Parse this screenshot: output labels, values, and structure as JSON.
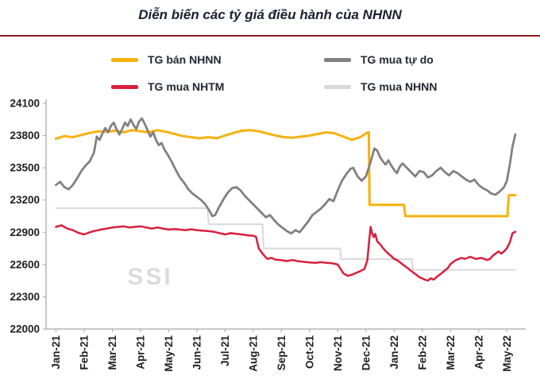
{
  "title": "Diễn biến các tỷ giá điều hành của NHNN",
  "watermark": "SSI",
  "colors": {
    "title_text": "#1b2030",
    "divider": "#8b1a1e",
    "axis": "#a6a6a6",
    "tick_text": "#1f1f1f",
    "watermark": "#dbdbdb"
  },
  "chart_data": {
    "type": "line",
    "title": "Diễn biến các tỷ giá điều hành của NHNN",
    "xlabel": "",
    "ylabel": "",
    "x_unit": "months since Jan-2021",
    "ylim": [
      22000,
      24100
    ],
    "yticks": [
      22000,
      22300,
      22600,
      22900,
      23200,
      23500,
      23800,
      24100
    ],
    "xlim": [
      -0.35,
      16.5
    ],
    "x_tick_positions": [
      0,
      1,
      2,
      3,
      4,
      5,
      6,
      7,
      8,
      9,
      10,
      11,
      12,
      13,
      14,
      15,
      16
    ],
    "x_tick_labels": [
      "Jan-21",
      "Feb-21",
      "Mar-21",
      "Apr-21",
      "May-21",
      "Jun-21",
      "Jul-21",
      "Aug-21",
      "Sep-21",
      "Oct-21",
      "Nov-21",
      "Dec-21",
      "Jan-22",
      "Feb-22",
      "Mar-22",
      "Apr-22",
      "May-22"
    ],
    "grid": false,
    "legend_position": "top",
    "series": [
      {
        "name": "TG bán NHNN",
        "color": "#f7b10c",
        "stroke_width": 3,
        "points": [
          [
            0,
            23770
          ],
          [
            0.3,
            23795
          ],
          [
            0.6,
            23785
          ],
          [
            0.9,
            23805
          ],
          [
            1.2,
            23825
          ],
          [
            1.5,
            23840
          ],
          [
            1.8,
            23835
          ],
          [
            2.1,
            23845
          ],
          [
            2.4,
            23830
          ],
          [
            2.7,
            23850
          ],
          [
            3.0,
            23840
          ],
          [
            3.3,
            23830
          ],
          [
            3.6,
            23850
          ],
          [
            3.9,
            23835
          ],
          [
            4.2,
            23815
          ],
          [
            4.5,
            23795
          ],
          [
            4.8,
            23785
          ],
          [
            5.1,
            23775
          ],
          [
            5.4,
            23785
          ],
          [
            5.7,
            23775
          ],
          [
            6.0,
            23800
          ],
          [
            6.3,
            23825
          ],
          [
            6.6,
            23845
          ],
          [
            6.9,
            23850
          ],
          [
            7.2,
            23840
          ],
          [
            7.5,
            23820
          ],
          [
            7.8,
            23800
          ],
          [
            8.1,
            23785
          ],
          [
            8.4,
            23780
          ],
          [
            8.7,
            23790
          ],
          [
            9.0,
            23800
          ],
          [
            9.3,
            23815
          ],
          [
            9.6,
            23830
          ],
          [
            9.9,
            23820
          ],
          [
            10.2,
            23790
          ],
          [
            10.5,
            23760
          ],
          [
            10.8,
            23785
          ],
          [
            11.0,
            23820
          ],
          [
            11.1,
            23830
          ],
          [
            11.13,
            23155
          ],
          [
            12.35,
            23155
          ],
          [
            12.4,
            23050
          ],
          [
            16.02,
            23050
          ],
          [
            16.07,
            23245
          ],
          [
            16.3,
            23245
          ]
        ]
      },
      {
        "name": "TG mua tự do",
        "color": "#808080",
        "stroke_width": 2.75,
        "points": [
          [
            0,
            23340
          ],
          [
            0.15,
            23370
          ],
          [
            0.3,
            23320
          ],
          [
            0.45,
            23300
          ],
          [
            0.6,
            23340
          ],
          [
            0.75,
            23400
          ],
          [
            0.9,
            23470
          ],
          [
            1.05,
            23520
          ],
          [
            1.2,
            23560
          ],
          [
            1.35,
            23640
          ],
          [
            1.45,
            23790
          ],
          [
            1.55,
            23760
          ],
          [
            1.65,
            23820
          ],
          [
            1.75,
            23870
          ],
          [
            1.85,
            23830
          ],
          [
            1.95,
            23890
          ],
          [
            2.05,
            23920
          ],
          [
            2.15,
            23860
          ],
          [
            2.25,
            23810
          ],
          [
            2.35,
            23860
          ],
          [
            2.45,
            23920
          ],
          [
            2.55,
            23890
          ],
          [
            2.65,
            23950
          ],
          [
            2.75,
            23900
          ],
          [
            2.85,
            23860
          ],
          [
            2.95,
            23930
          ],
          [
            3.05,
            23960
          ],
          [
            3.15,
            23910
          ],
          [
            3.25,
            23850
          ],
          [
            3.35,
            23790
          ],
          [
            3.45,
            23830
          ],
          [
            3.55,
            23760
          ],
          [
            3.65,
            23710
          ],
          [
            3.75,
            23730
          ],
          [
            3.85,
            23670
          ],
          [
            3.95,
            23630
          ],
          [
            4.1,
            23560
          ],
          [
            4.25,
            23480
          ],
          [
            4.4,
            23410
          ],
          [
            4.55,
            23360
          ],
          [
            4.7,
            23300
          ],
          [
            4.85,
            23260
          ],
          [
            5.0,
            23230
          ],
          [
            5.15,
            23200
          ],
          [
            5.3,
            23160
          ],
          [
            5.45,
            23100
          ],
          [
            5.55,
            23050
          ],
          [
            5.65,
            23060
          ],
          [
            5.8,
            23140
          ],
          [
            5.95,
            23210
          ],
          [
            6.1,
            23270
          ],
          [
            6.25,
            23310
          ],
          [
            6.4,
            23320
          ],
          [
            6.55,
            23290
          ],
          [
            6.7,
            23240
          ],
          [
            6.85,
            23200
          ],
          [
            7.0,
            23160
          ],
          [
            7.15,
            23120
          ],
          [
            7.3,
            23080
          ],
          [
            7.45,
            23040
          ],
          [
            7.6,
            23060
          ],
          [
            7.75,
            23010
          ],
          [
            7.9,
            22970
          ],
          [
            8.05,
            22940
          ],
          [
            8.2,
            22910
          ],
          [
            8.35,
            22890
          ],
          [
            8.5,
            22920
          ],
          [
            8.65,
            22900
          ],
          [
            8.8,
            22950
          ],
          [
            8.95,
            23000
          ],
          [
            9.1,
            23060
          ],
          [
            9.25,
            23090
          ],
          [
            9.4,
            23120
          ],
          [
            9.55,
            23160
          ],
          [
            9.7,
            23210
          ],
          [
            9.85,
            23190
          ],
          [
            10.0,
            23290
          ],
          [
            10.15,
            23380
          ],
          [
            10.3,
            23440
          ],
          [
            10.45,
            23490
          ],
          [
            10.55,
            23500
          ],
          [
            10.7,
            23420
          ],
          [
            10.85,
            23380
          ],
          [
            11.0,
            23420
          ],
          [
            11.15,
            23540
          ],
          [
            11.3,
            23680
          ],
          [
            11.4,
            23660
          ],
          [
            11.5,
            23600
          ],
          [
            11.6,
            23560
          ],
          [
            11.7,
            23530
          ],
          [
            11.8,
            23570
          ],
          [
            11.9,
            23520
          ],
          [
            12.0,
            23480
          ],
          [
            12.1,
            23450
          ],
          [
            12.2,
            23510
          ],
          [
            12.3,
            23540
          ],
          [
            12.45,
            23500
          ],
          [
            12.6,
            23460
          ],
          [
            12.75,
            23420
          ],
          [
            12.9,
            23470
          ],
          [
            13.05,
            23460
          ],
          [
            13.2,
            23410
          ],
          [
            13.35,
            23430
          ],
          [
            13.5,
            23470
          ],
          [
            13.65,
            23500
          ],
          [
            13.8,
            23460
          ],
          [
            13.95,
            23430
          ],
          [
            14.1,
            23470
          ],
          [
            14.25,
            23450
          ],
          [
            14.4,
            23420
          ],
          [
            14.55,
            23390
          ],
          [
            14.7,
            23370
          ],
          [
            14.85,
            23390
          ],
          [
            15.0,
            23340
          ],
          [
            15.15,
            23310
          ],
          [
            15.3,
            23290
          ],
          [
            15.45,
            23260
          ],
          [
            15.6,
            23250
          ],
          [
            15.75,
            23280
          ],
          [
            15.9,
            23320
          ],
          [
            16.0,
            23380
          ],
          [
            16.1,
            23520
          ],
          [
            16.2,
            23700
          ],
          [
            16.3,
            23810
          ]
        ]
      },
      {
        "name": "TG mua NHTM",
        "color": "#d91f3c",
        "stroke_width": 2.5,
        "points": [
          [
            0,
            22950
          ],
          [
            0.2,
            22965
          ],
          [
            0.4,
            22935
          ],
          [
            0.6,
            22920
          ],
          [
            0.8,
            22895
          ],
          [
            1.0,
            22880
          ],
          [
            1.2,
            22900
          ],
          [
            1.4,
            22915
          ],
          [
            1.6,
            22925
          ],
          [
            1.8,
            22935
          ],
          [
            2.0,
            22945
          ],
          [
            2.2,
            22950
          ],
          [
            2.4,
            22955
          ],
          [
            2.6,
            22945
          ],
          [
            2.8,
            22950
          ],
          [
            3.0,
            22955
          ],
          [
            3.2,
            22945
          ],
          [
            3.4,
            22935
          ],
          [
            3.6,
            22945
          ],
          [
            3.8,
            22935
          ],
          [
            4.0,
            22925
          ],
          [
            4.2,
            22930
          ],
          [
            4.4,
            22925
          ],
          [
            4.6,
            22920
          ],
          [
            4.8,
            22928
          ],
          [
            5.0,
            22920
          ],
          [
            5.2,
            22915
          ],
          [
            5.4,
            22912
          ],
          [
            5.6,
            22905
          ],
          [
            5.8,
            22892
          ],
          [
            6.0,
            22880
          ],
          [
            6.2,
            22892
          ],
          [
            6.4,
            22885
          ],
          [
            6.6,
            22880
          ],
          [
            6.8,
            22872
          ],
          [
            7.0,
            22868
          ],
          [
            7.1,
            22858
          ],
          [
            7.2,
            22748
          ],
          [
            7.35,
            22695
          ],
          [
            7.5,
            22652
          ],
          [
            7.65,
            22662
          ],
          [
            7.8,
            22645
          ],
          [
            8.0,
            22640
          ],
          [
            8.2,
            22632
          ],
          [
            8.4,
            22642
          ],
          [
            8.6,
            22630
          ],
          [
            8.8,
            22625
          ],
          [
            9.0,
            22620
          ],
          [
            9.2,
            22616
          ],
          [
            9.4,
            22622
          ],
          [
            9.6,
            22616
          ],
          [
            9.8,
            22612
          ],
          [
            10.0,
            22600
          ],
          [
            10.1,
            22558
          ],
          [
            10.2,
            22518
          ],
          [
            10.35,
            22495
          ],
          [
            10.5,
            22505
          ],
          [
            10.65,
            22522
          ],
          [
            10.8,
            22538
          ],
          [
            10.95,
            22560
          ],
          [
            11.05,
            22640
          ],
          [
            11.12,
            22840
          ],
          [
            11.17,
            22950
          ],
          [
            11.22,
            22890
          ],
          [
            11.28,
            22855
          ],
          [
            11.33,
            22885
          ],
          [
            11.4,
            22815
          ],
          [
            11.5,
            22790
          ],
          [
            11.6,
            22755
          ],
          [
            11.7,
            22725
          ],
          [
            11.8,
            22700
          ],
          [
            11.9,
            22678
          ],
          [
            12.0,
            22652
          ],
          [
            12.1,
            22642
          ],
          [
            12.2,
            22622
          ],
          [
            12.3,
            22602
          ],
          [
            12.4,
            22582
          ],
          [
            12.5,
            22562
          ],
          [
            12.6,
            22542
          ],
          [
            12.7,
            22522
          ],
          [
            12.8,
            22502
          ],
          [
            12.9,
            22482
          ],
          [
            13.0,
            22470
          ],
          [
            13.1,
            22458
          ],
          [
            13.2,
            22450
          ],
          [
            13.3,
            22472
          ],
          [
            13.4,
            22460
          ],
          [
            13.5,
            22482
          ],
          [
            13.6,
            22502
          ],
          [
            13.7,
            22522
          ],
          [
            13.8,
            22545
          ],
          [
            13.9,
            22565
          ],
          [
            14.0,
            22605
          ],
          [
            14.1,
            22625
          ],
          [
            14.2,
            22642
          ],
          [
            14.3,
            22652
          ],
          [
            14.4,
            22662
          ],
          [
            14.5,
            22652
          ],
          [
            14.6,
            22662
          ],
          [
            14.7,
            22672
          ],
          [
            14.8,
            22662
          ],
          [
            14.9,
            22652
          ],
          [
            15.0,
            22657
          ],
          [
            15.1,
            22662
          ],
          [
            15.2,
            22652
          ],
          [
            15.3,
            22642
          ],
          [
            15.4,
            22652
          ],
          [
            15.5,
            22682
          ],
          [
            15.6,
            22702
          ],
          [
            15.7,
            22722
          ],
          [
            15.8,
            22702
          ],
          [
            15.9,
            22722
          ],
          [
            16.0,
            22752
          ],
          [
            16.1,
            22802
          ],
          [
            16.2,
            22892
          ],
          [
            16.3,
            22905
          ]
        ]
      },
      {
        "name": "TG mua NHNN",
        "color": "#d9d9d9",
        "stroke_width": 2,
        "points": [
          [
            0,
            23125
          ],
          [
            5.38,
            23125
          ],
          [
            5.42,
            22975
          ],
          [
            7.33,
            22975
          ],
          [
            7.37,
            22750
          ],
          [
            10.08,
            22750
          ],
          [
            10.12,
            22650
          ],
          [
            12.63,
            22650
          ],
          [
            12.67,
            22550
          ],
          [
            16.3,
            22550
          ]
        ]
      }
    ]
  }
}
